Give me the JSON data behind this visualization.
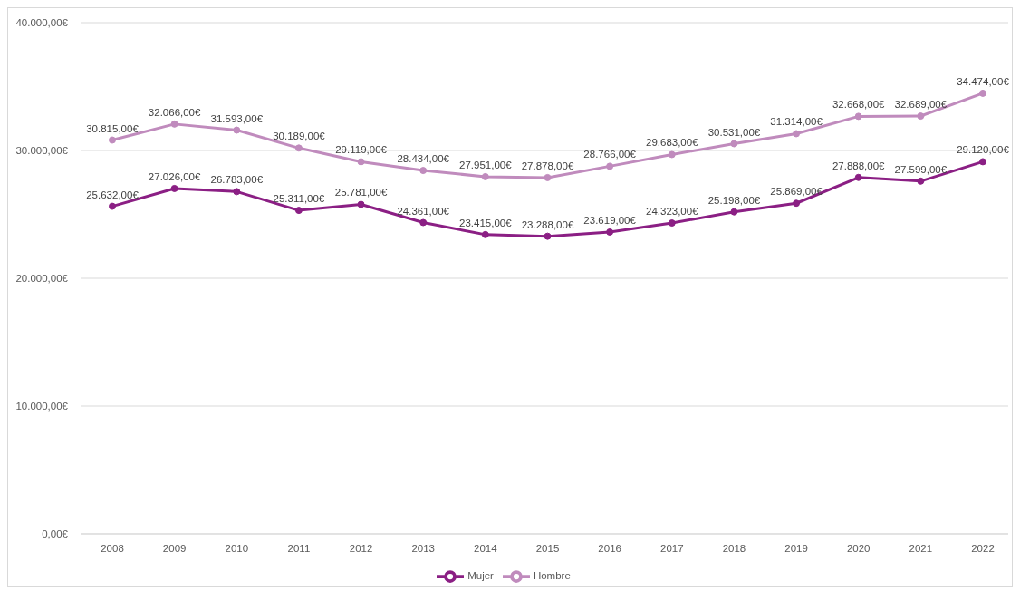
{
  "chart_data": {
    "type": "line",
    "categories": [
      "2008",
      "2009",
      "2010",
      "2011",
      "2012",
      "2013",
      "2014",
      "2015",
      "2016",
      "2017",
      "2018",
      "2019",
      "2020",
      "2021",
      "2022"
    ],
    "series": [
      {
        "name": "Mujer",
        "color": "#8b1f84",
        "values": [
          25632,
          27026,
          26783,
          25311,
          25781,
          24361,
          23415,
          23288,
          23619,
          24323,
          25198,
          25869,
          27888,
          27599,
          29120
        ],
        "value_labels": [
          "25.632,00€",
          "27.026,00€",
          "26.783,00€",
          "25.311,00€",
          "25.781,00€",
          "24.361,00€",
          "23.415,00€",
          "23.288,00€",
          "23.619,00€",
          "24.323,00€",
          "25.198,00€",
          "25.869,00€",
          "27.888,00€",
          "27.599,00€",
          "29.120,00€"
        ]
      },
      {
        "name": "Hombre",
        "color": "#c08bbd",
        "values": [
          30815,
          32066,
          31593,
          30189,
          29119,
          28434,
          27951,
          27878,
          28766,
          29683,
          30531,
          31314,
          32668,
          32689,
          34474
        ],
        "value_labels": [
          "30.815,00€",
          "32.066,00€",
          "31.593,00€",
          "30.189,00€",
          "29.119,00€",
          "28.434,00€",
          "27.951,00€",
          "27.878,00€",
          "28.766,00€",
          "29.683,00€",
          "30.531,00€",
          "31.314,00€",
          "32.668,00€",
          "32.689,00€",
          "34.474,00€"
        ]
      }
    ],
    "ylim": [
      0,
      40000
    ],
    "yticks": [
      {
        "value": 0,
        "label": "0,00€"
      },
      {
        "value": 10000,
        "label": "10.000,00€"
      },
      {
        "value": 20000,
        "label": "20.000,00€"
      },
      {
        "value": 30000,
        "label": "30.000,00€"
      },
      {
        "value": 40000,
        "label": "40.000,00€"
      }
    ],
    "grid": "y",
    "legend": "bottom",
    "marker": "circle"
  }
}
